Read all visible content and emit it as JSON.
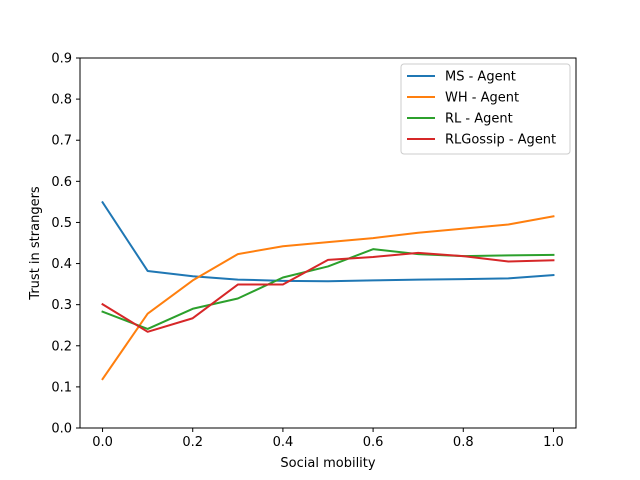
{
  "chart_data": {
    "type": "line",
    "xlabel": "Social mobility",
    "ylabel": "Trust in strangers",
    "xlim": [
      -0.05,
      1.05
    ],
    "ylim": [
      0.0,
      0.9
    ],
    "xticks": [
      0.0,
      0.2,
      0.4,
      0.6,
      0.8,
      1.0
    ],
    "xtick_labels": [
      "0.0",
      "0.2",
      "0.4",
      "0.6",
      "0.8",
      "1.0"
    ],
    "yticks": [
      0.0,
      0.1,
      0.2,
      0.3,
      0.4,
      0.5,
      0.6,
      0.7,
      0.8,
      0.9
    ],
    "ytick_labels": [
      "0.0",
      "0.1",
      "0.2",
      "0.3",
      "0.4",
      "0.5",
      "0.6",
      "0.7",
      "0.8",
      "0.9"
    ],
    "grid": false,
    "legend_position": "top-right",
    "x": [
      0.0,
      0.1,
      0.2,
      0.3,
      0.4,
      0.5,
      0.6,
      0.7,
      0.8,
      0.9,
      1.0
    ],
    "series": [
      {
        "name": "MS - Agent",
        "color": "#1f77b4",
        "values": [
          0.549,
          0.382,
          0.369,
          0.361,
          0.358,
          0.357,
          0.359,
          0.361,
          0.362,
          0.364,
          0.372
        ]
      },
      {
        "name": "WH - Agent",
        "color": "#ff7f0e",
        "values": [
          0.119,
          0.278,
          0.359,
          0.423,
          0.442,
          0.452,
          0.462,
          0.475,
          0.485,
          0.495,
          0.515
        ]
      },
      {
        "name": "RL - Agent",
        "color": "#2ca02c",
        "values": [
          0.283,
          0.241,
          0.29,
          0.315,
          0.366,
          0.393,
          0.435,
          0.423,
          0.418,
          0.42,
          0.421
        ]
      },
      {
        "name": "RLGossip - Agent",
        "color": "#d62728",
        "values": [
          0.301,
          0.234,
          0.267,
          0.349,
          0.349,
          0.409,
          0.416,
          0.426,
          0.418,
          0.405,
          0.408
        ]
      }
    ]
  }
}
